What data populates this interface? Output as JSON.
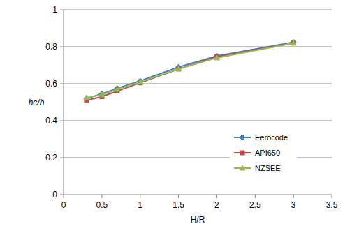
{
  "chart_data": {
    "type": "line",
    "x_label": "H/R",
    "y_label": "hc/h",
    "x": [
      0.3,
      0.5,
      0.7,
      1,
      1.5,
      2,
      3
    ],
    "series": [
      {
        "name": "Eerocode",
        "color": "#4a7ebb",
        "marker": "diamond",
        "values": [
          0.52,
          0.545,
          0.575,
          0.615,
          0.69,
          0.75,
          0.825
        ]
      },
      {
        "name": "API650",
        "color": "#be4b48",
        "marker": "square",
        "values": [
          0.51,
          0.53,
          0.56,
          0.605,
          0.68,
          0.745,
          0.82
        ]
      },
      {
        "name": "NZSEE",
        "color": "#98b954",
        "marker": "triangle",
        "values": [
          0.525,
          0.54,
          0.57,
          0.61,
          0.68,
          0.74,
          0.82
        ]
      }
    ],
    "xlim": [
      0,
      3.5
    ],
    "xticks": [
      0,
      0.5,
      1,
      1.5,
      2,
      2.5,
      3,
      3.5
    ],
    "ylim": [
      0,
      1
    ],
    "yticks": [
      0,
      0.2,
      0.4,
      0.6,
      0.8,
      1
    ],
    "grid": true,
    "legend": "lower right"
  }
}
